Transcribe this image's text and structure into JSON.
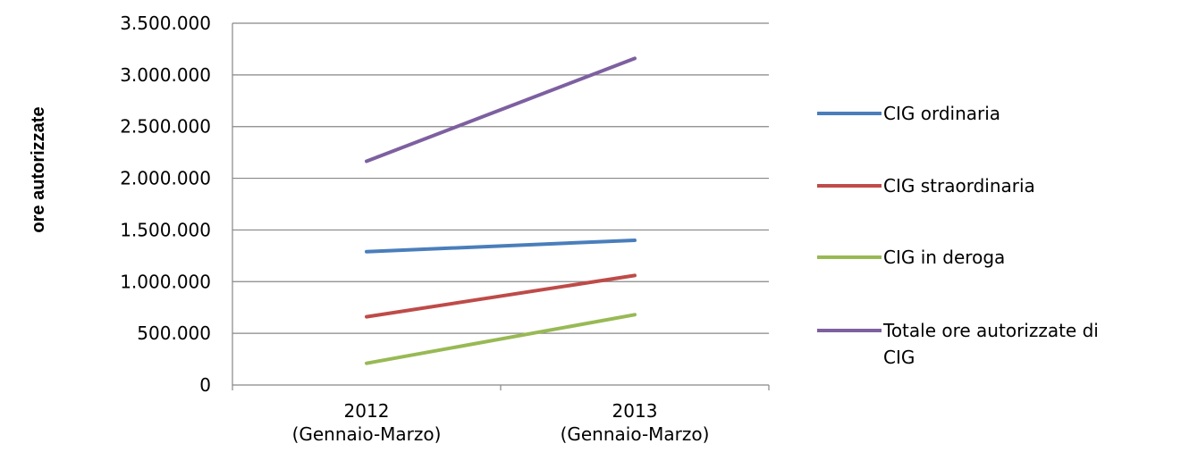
{
  "chart_data": {
    "type": "line",
    "ylabel": "ore autorizzate",
    "xlabel": "",
    "title": "",
    "categories": [
      "2012 (Gennaio-Marzo)",
      "2013 (Gennaio-Marzo)"
    ],
    "category_lines": [
      [
        "2012",
        "(Gennaio-Marzo)"
      ],
      [
        "2013",
        "(Gennaio-Marzo)"
      ]
    ],
    "ylim": [
      0,
      3500000
    ],
    "y_ticks": [
      0,
      500000,
      1000000,
      1500000,
      2000000,
      2500000,
      3000000,
      3500000
    ],
    "y_tick_labels": [
      "0",
      "500.000",
      "1.000.000",
      "1.500.000",
      "2.000.000",
      "2.500.000",
      "3.000.000",
      "3.500.000"
    ],
    "grid": true,
    "legend_position": "right",
    "series": [
      {
        "name": "CIG ordinaria",
        "name_lines": [
          "CIG ordinaria"
        ],
        "color": "#4a7ebb",
        "values": [
          1290000,
          1400000
        ]
      },
      {
        "name": "CIG straordinaria",
        "name_lines": [
          "CIG straordinaria"
        ],
        "color": "#be4b48",
        "values": [
          660000,
          1060000
        ]
      },
      {
        "name": "CIG in deroga",
        "name_lines": [
          "CIG in deroga"
        ],
        "color": "#98b954",
        "values": [
          210000,
          680000
        ]
      },
      {
        "name": "Totale ore autorizzate di CIG",
        "name_lines": [
          "Totale ore autorizzate di",
          "CIG"
        ],
        "color": "#7d60a0",
        "values": [
          2165000,
          3160000
        ]
      }
    ]
  }
}
